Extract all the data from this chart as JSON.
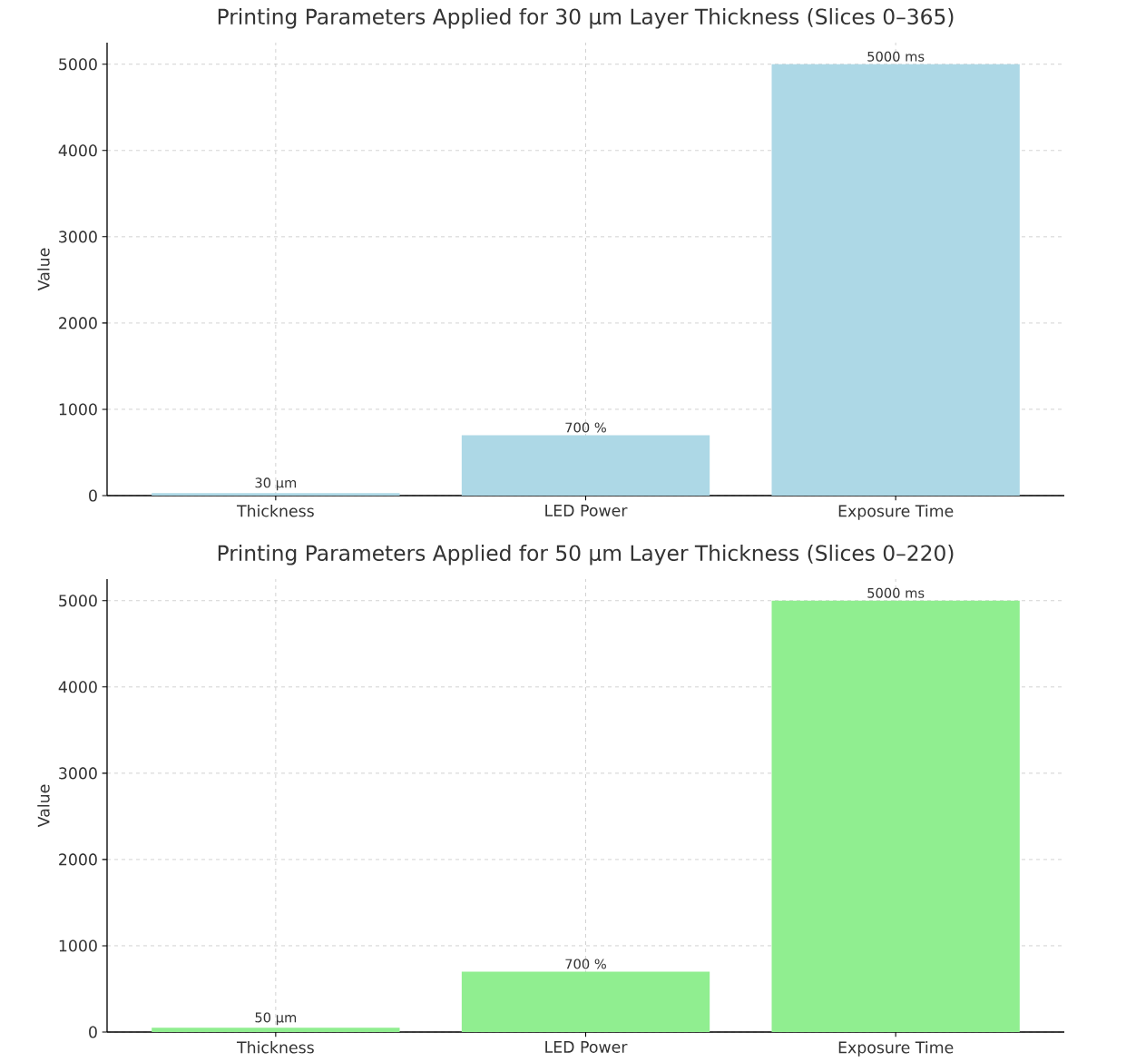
{
  "chart_data": [
    {
      "type": "bar",
      "title": "Printing Parameters Applied for 30 µm Layer Thickness (Slices 0–365)",
      "ylabel": "Value",
      "categories": [
        "Thickness",
        "LED Power",
        "Exposure Time"
      ],
      "values": [
        30,
        700,
        5000
      ],
      "color": "#add8e6",
      "value_labels": [
        "30 µm",
        "700 %",
        "5000 ms"
      ],
      "ylim": [
        0,
        5250
      ],
      "yticks": [
        0,
        1000,
        2000,
        3000,
        4000,
        5000
      ],
      "grid": true
    },
    {
      "type": "bar",
      "title": "Printing Parameters Applied for 50 µm Layer Thickness (Slices 0–220)",
      "ylabel": "Value",
      "categories": [
        "Thickness",
        "LED Power",
        "Exposure Time"
      ],
      "values": [
        50,
        700,
        5000
      ],
      "color": "#90ee90",
      "value_labels": [
        "50 µm",
        "700 %",
        "5000 ms"
      ],
      "ylim": [
        0,
        5250
      ],
      "yticks": [
        0,
        1000,
        2000,
        3000,
        4000,
        5000
      ],
      "grid": true
    }
  ]
}
